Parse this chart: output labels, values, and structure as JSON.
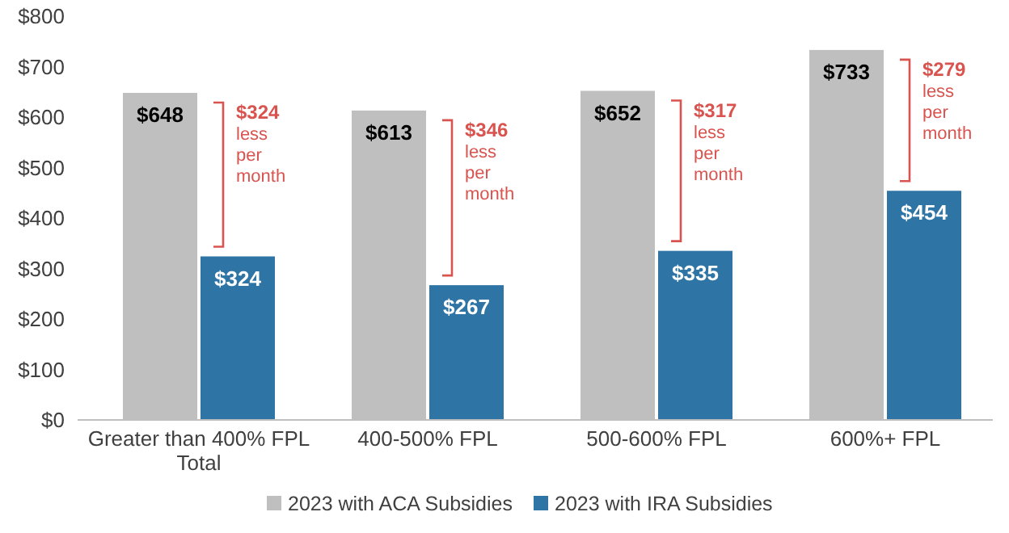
{
  "chart_data": {
    "type": "bar",
    "categories": [
      "Greater than 400% FPL Total",
      "400-500% FPL",
      "500-600% FPL",
      "600%+ FPL"
    ],
    "series": [
      {
        "name": "2023 with ACA Subsidies",
        "color": "#bfbfbf",
        "values": [
          648,
          613,
          652,
          733
        ],
        "value_labels": [
          "$648",
          "$613",
          "$652",
          "$733"
        ]
      },
      {
        "name": "2023 with IRA Subsidies",
        "color": "#2e75a6",
        "values": [
          324,
          267,
          335,
          454
        ],
        "value_labels": [
          "$324",
          "$267",
          "$335",
          "$454"
        ]
      }
    ],
    "ylim": [
      0,
      800
    ],
    "yticks": [
      {
        "value": 0,
        "label": "$0"
      },
      {
        "value": 100,
        "label": "$100"
      },
      {
        "value": 200,
        "label": "$200"
      },
      {
        "value": 300,
        "label": "$300"
      },
      {
        "value": 400,
        "label": "$400"
      },
      {
        "value": 500,
        "label": "$500"
      },
      {
        "value": 600,
        "label": "$600"
      },
      {
        "value": 700,
        "label": "$700"
      },
      {
        "value": 800,
        "label": "$800"
      }
    ],
    "annotations": [
      "$324 less per month",
      "$346 less per month",
      "$317 less per month",
      "$279 less per month"
    ],
    "legend": "bottom"
  }
}
